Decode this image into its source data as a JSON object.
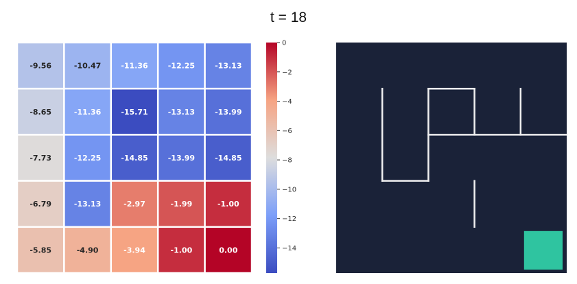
{
  "title": "t = 18",
  "chart_data": [
    {
      "type": "heatmap",
      "rows": 5,
      "cols": 5,
      "values": [
        [
          -9.56,
          -10.47,
          -11.36,
          -12.25,
          -13.13
        ],
        [
          -8.65,
          -11.36,
          -15.71,
          -13.13,
          -13.99
        ],
        [
          -7.73,
          -12.25,
          -14.85,
          -13.99,
          -14.85
        ],
        [
          -6.79,
          -13.13,
          -2.97,
          -1.99,
          -1.0
        ],
        [
          -5.85,
          -4.9,
          -3.94,
          -1.0,
          0.0
        ]
      ],
      "cell_labels": [
        [
          "-9.56",
          "-10.47",
          "-11.36",
          "-12.25",
          "-13.13"
        ],
        [
          "-8.65",
          "-11.36",
          "-15.71",
          "-13.13",
          "-13.99"
        ],
        [
          "-7.73",
          "-12.25",
          "-14.85",
          "-13.99",
          "-14.85"
        ],
        [
          "-6.79",
          "-13.13",
          "-2.97",
          "-1.99",
          "-1.00"
        ],
        [
          "-5.85",
          "-4.90",
          "-3.94",
          "-1.00",
          "0.00"
        ]
      ],
      "colormap": "coolwarm",
      "vmin": -15.71,
      "vmax": 0,
      "colorbar_ticks": [
        0,
        -2,
        -4,
        -6,
        -8,
        -10,
        -12,
        -14
      ],
      "colorbar_tick_labels": [
        "0",
        "−2",
        "−4",
        "−6",
        "−8",
        "−10",
        "−12",
        "−14"
      ],
      "grid": true
    },
    {
      "type": "maze",
      "grid_size": 5,
      "walls": [
        [
          [
            1,
            1
          ],
          [
            1,
            3
          ]
        ],
        [
          [
            1,
            3
          ],
          [
            2,
            3
          ]
        ],
        [
          [
            2,
            1
          ],
          [
            3,
            1
          ]
        ],
        [
          [
            2,
            1
          ],
          [
            2,
            3
          ]
        ],
        [
          [
            3,
            1
          ],
          [
            3,
            2
          ]
        ],
        [
          [
            4,
            1
          ],
          [
            4,
            2
          ]
        ],
        [
          [
            2,
            2
          ],
          [
            5,
            2
          ]
        ],
        [
          [
            3,
            3
          ],
          [
            3,
            4
          ]
        ]
      ],
      "goal_cell": [
        4,
        4
      ],
      "background_color": "#1a2238",
      "wall_color": "#f0f0f0",
      "goal_color": "#2fc4a0"
    }
  ]
}
